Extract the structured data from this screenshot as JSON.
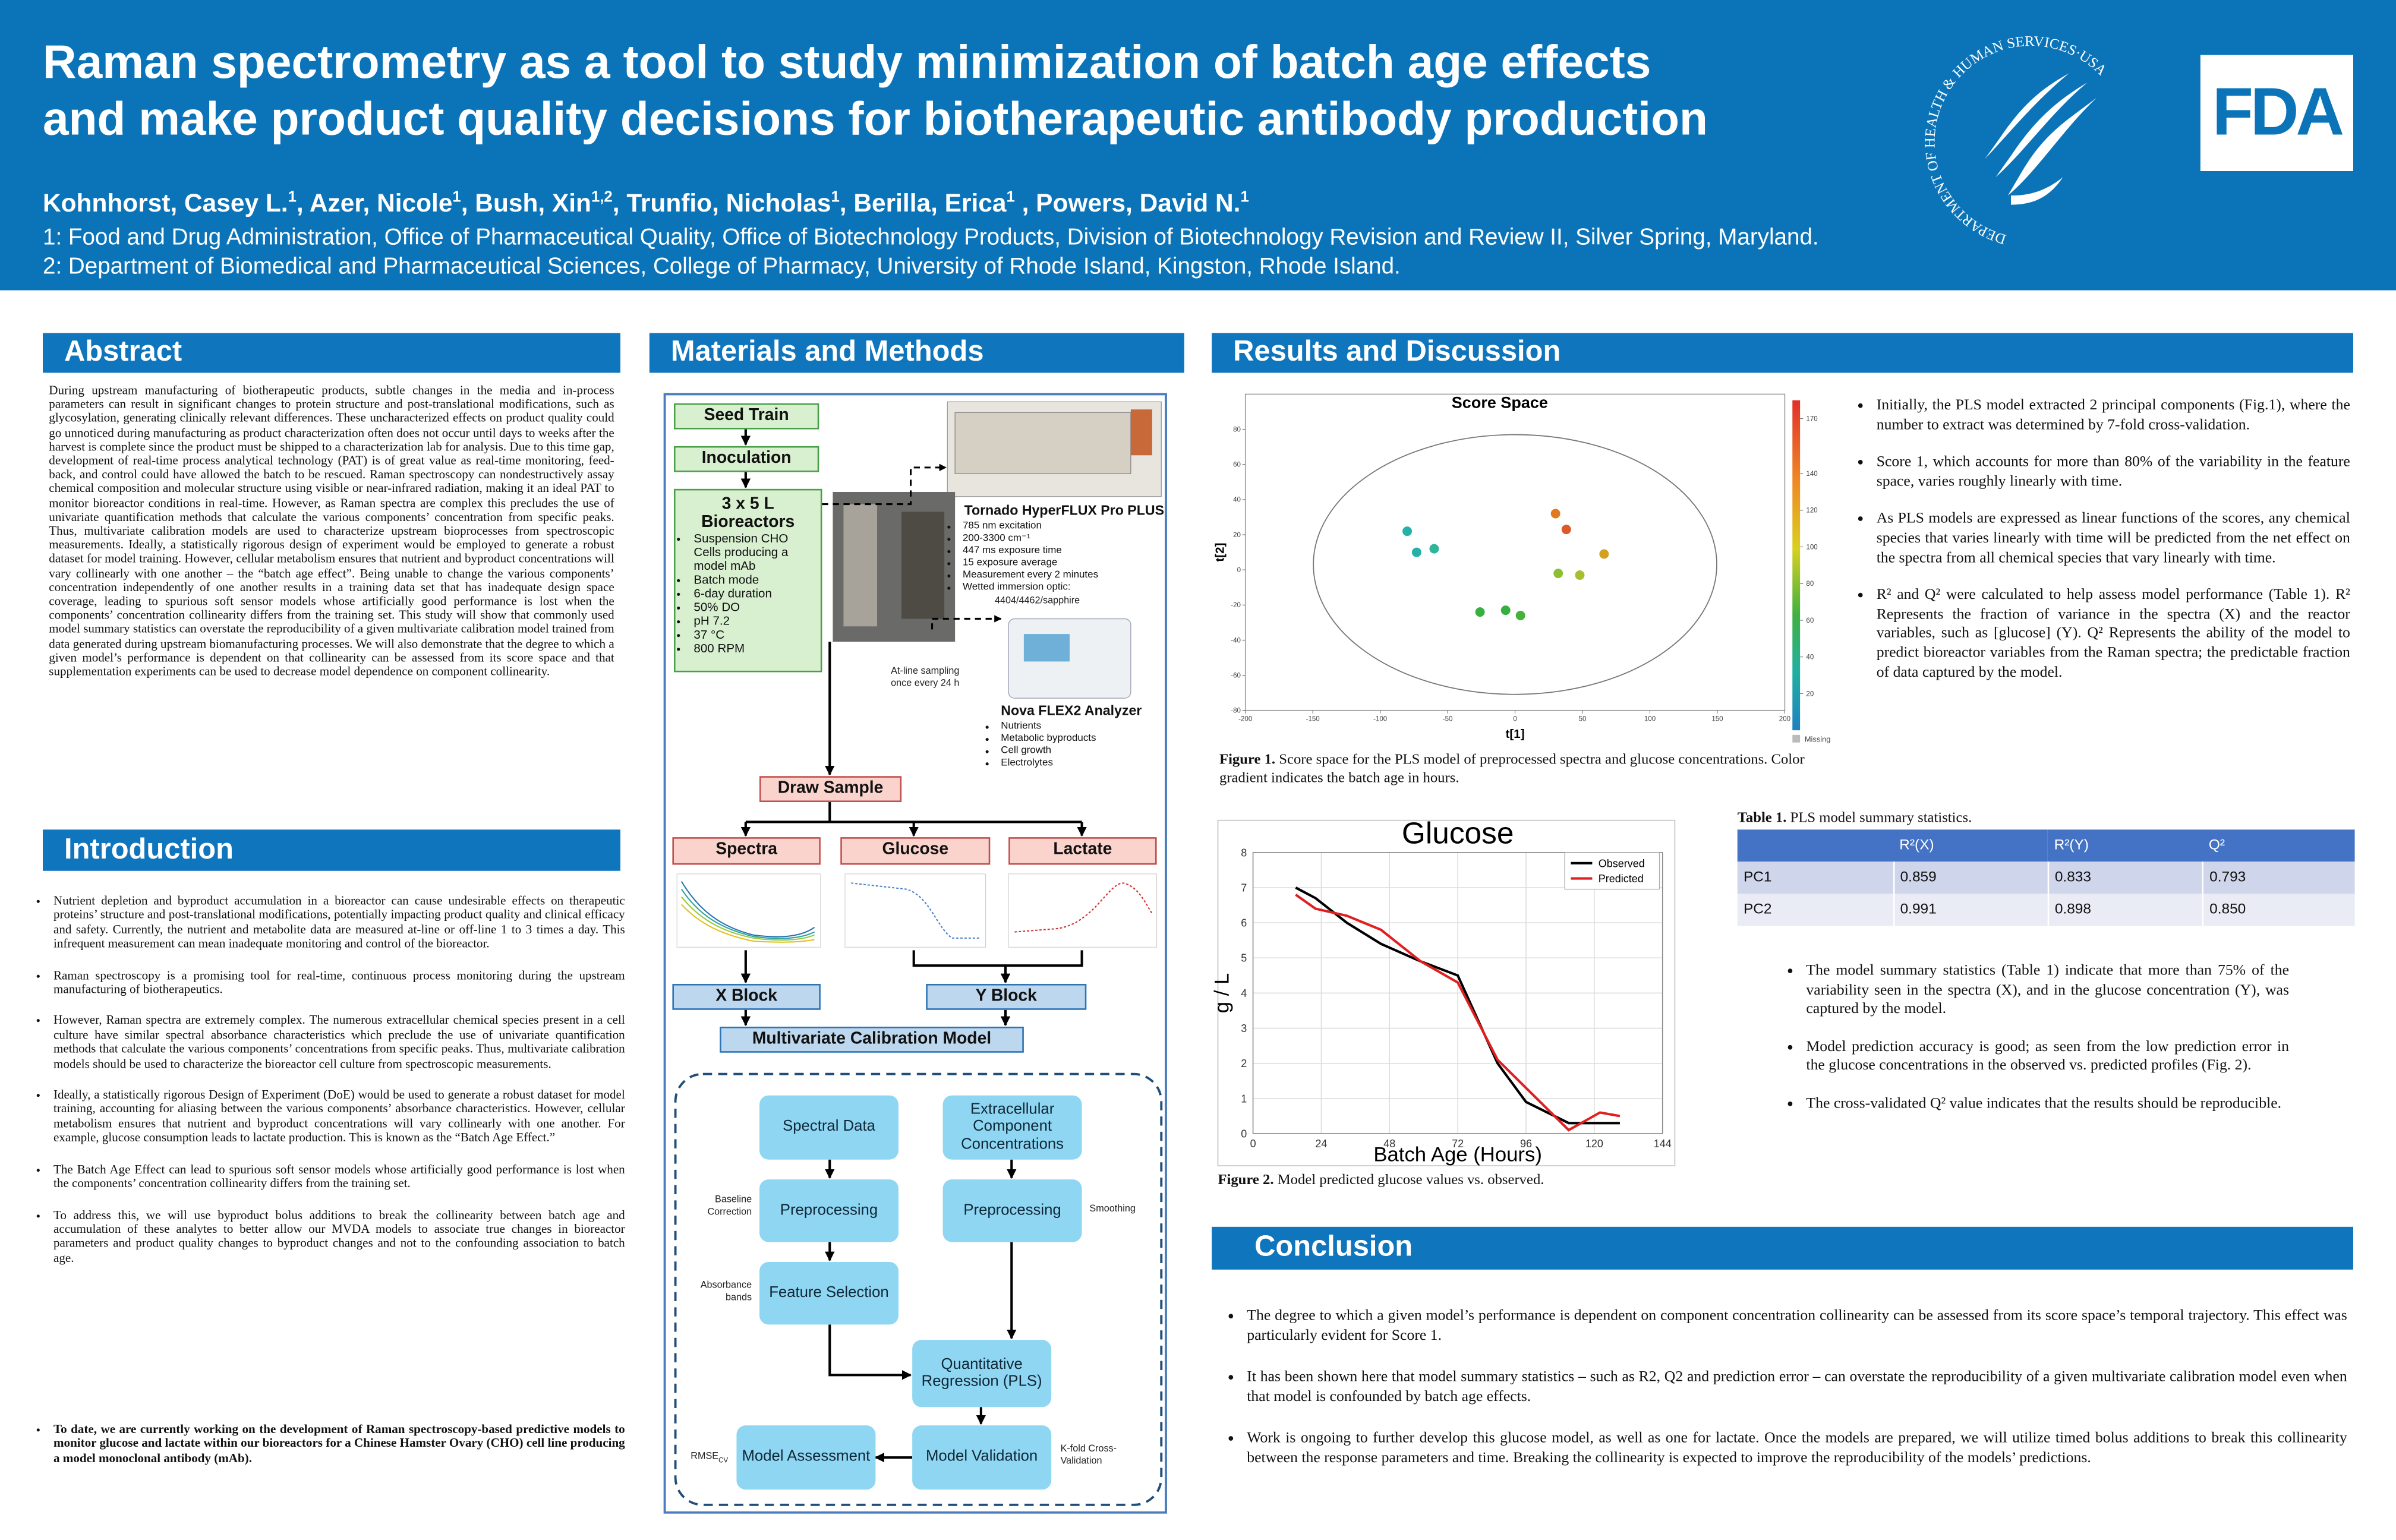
{
  "header": {
    "title_lines": [
      "Raman spectrometry as a tool to study minimization of batch age effects",
      "and make product quality decisions for biotherapeutic antibody production"
    ],
    "authors": [
      {
        "name": "Kohnhorst, Casey L.",
        "sup": "1"
      },
      {
        "name": ", Azer, Nicole",
        "sup": "1"
      },
      {
        "name": ", Bush, Xin",
        "sup": "1,2"
      },
      {
        "name": ", Trunfio, Nicholas",
        "sup": "1"
      },
      {
        "name": ", Berilla, Erica",
        "sup": "1"
      },
      {
        "name": " , Powers, David N.",
        "sup": "1"
      }
    ],
    "affiliations": [
      "1: Food and Drug Administration, Office of Pharmaceutical Quality, Office of Biotechnology Products, Division of Biotechnology Revision and Review II, Silver Spring, Maryland.",
      "2: Department of Biomedical and Pharmaceutical Sciences, College of Pharmacy, University of Rhode Island, Kingston, Rhode Island."
    ],
    "seal_text": "DEPARTMENT OF HEALTH & HUMAN SERVICES·USA",
    "logo": "FDA"
  },
  "abstract": {
    "heading": "Abstract",
    "text": "During upstream manufacturing of biotherapeutic products, subtle changes in the media and in-process parameters can result in significant changes to protein structure and post-translational modifications, such as glycosylation, generating clinically relevant differences. These uncharacterized effects on product quality could go unnoticed during manufacturing as product characterization often does not occur until days to weeks after the harvest is complete since the product must be shipped to a characterization lab for analysis. Due to this time gap, development of real-time process analytical technology (PAT) is of great value as real-time monitoring, feed-back, and control could have allowed the batch to be rescued. Raman spectroscopy can nondestructively assay chemical composition and molecular structure using visible or near-infrared radiation, making it an ideal PAT to monitor bioreactor conditions in real-time. However, as Raman spectra are complex this precludes the use of univariate quantification methods that calculate the various components’ concentration from specific peaks. Thus, multivariate calibration models are used to characterize upstream bioprocesses from spectroscopic measurements. Ideally, a statistically rigorous design of experiment would be employed to generate a robust dataset for model training. However, cellular metabolism ensures that nutrient and byproduct concentrations will vary collinearly with one another – the “batch age effect”. Being unable to change the various components’ concentration independently of one another results in a training data set that has inadequate design space coverage, leading to spurious soft sensor models whose artificially good performance is lost when the components’ concentration collinearity differs from the training set. This study will show that commonly used model summary statistics can overstate the reproducibility of a given multivariate calibration model trained from data generated during upstream biomanufacturing processes. We will also demonstrate that the degree to which a given model’s performance is dependent on that collinearity can be assessed from its score space and that supplementation experiments can be used to decrease model dependence on component collinearity."
  },
  "introduction": {
    "heading": "Introduction",
    "bullets": [
      "Nutrient depletion and byproduct accumulation in a bioreactor can cause undesirable effects on therapeutic proteins’ structure and post-translational modifications, potentially impacting product quality and clinical efficacy and safety. Currently, the nutrient and metabolite data are measured at-line or off-line 1 to 3 times a day. This infrequent measurement can mean inadequate monitoring and control of the bioreactor.",
      "Raman spectroscopy is a promising tool for real-time, continuous process monitoring during the upstream manufacturing of biotherapeutics.",
      "However, Raman spectra are extremely complex. The numerous extracellular chemical species present in a cell culture have similar spectral absorbance characteristics which preclude the use of univariate quantification methods that calculate the various components’ concentrations from specific peaks. Thus, multivariate calibration models should be used to characterize the bioreactor cell culture from spectroscopic measurements.",
      "Ideally, a statistically rigorous Design of Experiment (DoE) would be used to generate a robust dataset for model training, accounting for aliasing between the various components’ absorbance characteristics. However, cellular metabolism ensures that nutrient and byproduct concentrations will vary collinearly with one another. For example, glucose consumption leads to lactate production. This is known as the “Batch Age Effect.”",
      "The Batch Age Effect can lead to spurious soft sensor models whose artificially good performance is lost when the components’ concentration collinearity differs from the training set.",
      "To address this, we will use byproduct bolus additions to break the collinearity between batch age and accumulation of these analytes to better allow our MVDA models to associate true changes in bioreactor parameters and product quality changes to byproduct changes and not to the confounding association to batch age."
    ],
    "closing": "To date, we are currently working on the development of Raman spectroscopy-based predictive models to monitor glucose and lactate within our bioreactors for a Chinese Hamster Ovary (CHO) cell line producing a model monoclonal antibody (mAb)."
  },
  "methods": {
    "heading": "Materials and Methods",
    "flow": {
      "seed_train": "Seed Train",
      "inoculation": "Inoculation",
      "bioreactor_title": "3 x 5 L Bioreactors",
      "bioreactor_specs": [
        "Suspension CHO Cells producing a model mAb",
        "Batch mode",
        "6-day duration",
        "50% DO",
        "pH 7.2",
        "37 °C",
        "800 RPM"
      ],
      "raman_name": "Tornado HyperFLUX Pro PLUS",
      "raman_specs": [
        "785 nm excitation",
        "200-3300 cm⁻¹",
        "447 ms exposure time",
        "15 exposure average",
        "Measurement every 2 minutes",
        "Wetted immersion optic:"
      ],
      "raman_optic": "4404/4462/sapphire",
      "sampling_note": "At-line sampling once every 24 h",
      "analyzer_name": "Nova FLEX2 Analyzer",
      "analyzer_specs": [
        "Nutrients",
        "Metabolic byproducts",
        "Cell growth",
        "Electrolytes"
      ],
      "draw_sample": "Draw Sample",
      "spectra": "Spectra",
      "glucose": "Glucose",
      "lactate": "Lactate",
      "x_block": "X Block",
      "y_block": "Y Block",
      "calibration_model": "Multivariate Calibration Model",
      "spectral_data": "Spectral Data",
      "concentrations": "Extracellular Component Concentrations",
      "preprocessing_x": "Preprocessing",
      "preprocessing_y": "Preprocessing",
      "feature_selection": "Feature Selection",
      "regression": "Quantitative Regression (PLS)",
      "validation": "Model Validation",
      "assessment": "Model Assessment",
      "baseline_note": "Baseline Correction",
      "smoothing_note": "Smoothing",
      "bands_note": "Absorbance bands",
      "kfold_note": "K-fold Cross-Validation",
      "rmse_note": "RMSE",
      "rmse_sub": "CV"
    }
  },
  "results": {
    "heading": "Results and Discussion",
    "bullets": [
      "Initially, the PLS model extracted 2 principal components (Fig.1), where the number to extract was determined by 7-fold cross-validation.",
      "Score 1, which accounts for more than 80% of the variability in the feature space, varies roughly linearly with time.",
      "As PLS models are expressed as linear functions of the scores, any chemical species that varies linearly with time will be predicted from the net effect on the spectra from all chemical species that vary linearly with time.",
      "R² and Q² were calculated to help assess model performance (Table 1). R²  Represents the fraction of variance in the spectra (X) and the reactor variables, such as [glucose] (Y). Q² Represents the ability of the model to predict bioreactor variables from the Raman spectra; the predictable fraction of data captured by the model."
    ],
    "figure1_caption": {
      "label": "Figure 1.",
      "text": " Score space for the PLS model of preprocessed spectra and glucose concentrations. Color gradient indicates the batch age in hours."
    },
    "table": {
      "caption": {
        "label": "Table 1.",
        "text": " PLS model summary statistics."
      },
      "columns": [
        "R²(X)",
        "R²(Y)",
        "Q²"
      ],
      "rows": [
        {
          "label": "PC1",
          "values": [
            "0.859",
            "0.833",
            "0.793"
          ]
        },
        {
          "label": "PC2",
          "values": [
            "0.991",
            "0.898",
            "0.850"
          ]
        }
      ]
    },
    "bullets2": [
      "The model summary statistics (Table 1) indicate that more than 75% of the variability seen in the spectra (X), and in the glucose concentration (Y), was captured by the model.",
      "Model prediction accuracy is good; as seen from the low prediction error in the glucose concentrations in the observed vs. predicted profiles (Fig. 2).",
      "The cross-validated Q² value indicates that the results should be reproducible."
    ],
    "figure2_caption": {
      "label": "Figure 2.",
      "text": " Model predicted glucose values vs. observed."
    }
  },
  "conclusion": {
    "heading": "Conclusion",
    "bullets": [
      "The degree to which a given model’s performance is dependent on component concentration collinearity can be assessed from its score space’s temporal trajectory. This effect was particularly evident for Score 1.",
      "It has been shown here that model summary statistics – such as R2, Q2 and prediction error – can overstate the reproducibility of a given multivariate calibration model even when that model is confounded by batch age effects.",
      "Work is ongoing to further develop this glucose model, as well as one for lactate. Once the models are prepared, we will utilize timed bolus additions to break this collinearity between the response parameters and time. Breaking the collinearity is expected to improve the reproducibility of the models’ predictions."
    ]
  },
  "chart_data": [
    {
      "type": "scatter",
      "title": "Score Space",
      "xlabel": "t[1]",
      "ylabel": "t[2]",
      "xlim": [
        -200,
        200
      ],
      "xticks": [
        -200,
        -150,
        -100,
        -50,
        0,
        50,
        100,
        150,
        200
      ],
      "ylim": [
        -80,
        100
      ],
      "yticks": [
        -80,
        -60,
        -40,
        -20,
        0,
        20,
        40,
        60,
        80
      ],
      "x": [
        -80,
        -73,
        -60,
        -26,
        -7,
        4,
        30,
        38,
        32,
        48,
        66
      ],
      "y": [
        22,
        10,
        12,
        -24,
        -23,
        -26,
        32,
        23,
        -2,
        -3,
        9
      ],
      "colors": [
        "#25b0a8",
        "#25b0a8",
        "#2fb59a",
        "#38b040",
        "#38b040",
        "#45b23a",
        "#e07a20",
        "#dc5a28",
        "#8cc030",
        "#a8c030",
        "#d4a020"
      ],
      "colorbar_lim": [
        0,
        180
      ],
      "colorbar_ticks": [
        20,
        40,
        60,
        80,
        100,
        120,
        140,
        170
      ],
      "colorbar_missing": "Missing"
    },
    {
      "type": "line",
      "title": "Glucose",
      "xlabel": "Batch Age (Hours)",
      "ylabel": "g / L",
      "xlim": [
        0,
        144
      ],
      "xticks": [
        0,
        24,
        48,
        72,
        96,
        120,
        144
      ],
      "ylim": [
        0,
        8
      ],
      "yticks": [
        0,
        1,
        2,
        3,
        4,
        5,
        6,
        7,
        8
      ],
      "grid": true,
      "x": [
        15,
        22,
        33,
        45,
        59,
        72,
        86,
        96,
        111,
        122,
        129
      ],
      "series": [
        {
          "name": "Observed",
          "color": "#000000",
          "values": [
            7.0,
            6.7,
            6.0,
            5.4,
            4.9,
            4.5,
            2.0,
            0.9,
            0.3,
            0.3,
            0.3
          ]
        },
        {
          "name": "Predicted",
          "color": "#e02020",
          "values": [
            6.8,
            6.4,
            6.2,
            5.8,
            4.9,
            4.3,
            2.1,
            1.3,
            0.1,
            0.6,
            0.5
          ]
        }
      ]
    }
  ]
}
